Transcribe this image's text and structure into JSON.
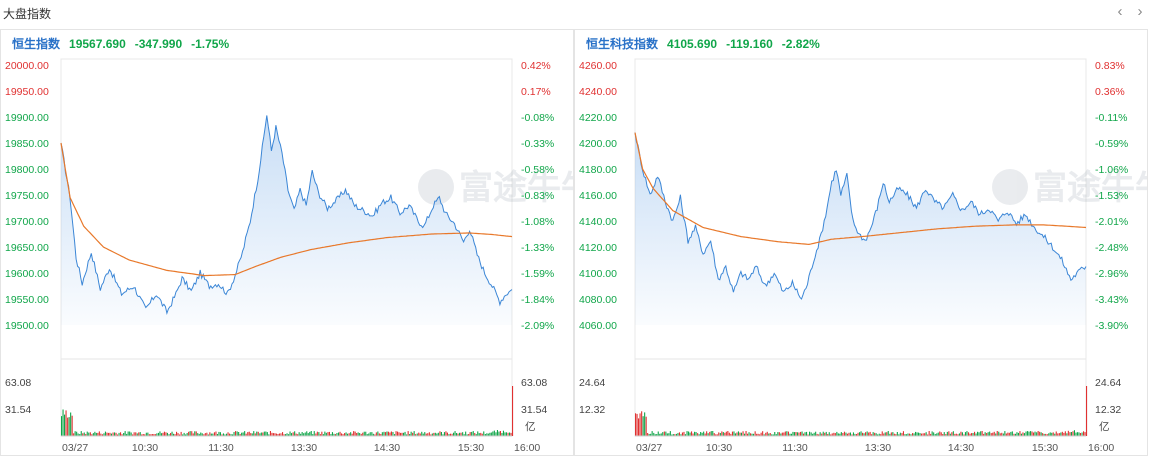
{
  "header": {
    "title": "大盘指数",
    "prev_icon": "chevron-left-icon",
    "next_icon": "chevron-right-icon"
  },
  "watermark": "富途牛牛",
  "colors": {
    "up": "#e03131",
    "down": "#11a64a",
    "price_line": "#3b86d6",
    "avg_line": "#e8782a",
    "name": "#2a72c8"
  },
  "panels": [
    {
      "name": "恒生指数",
      "price": "19567.690",
      "change": "-347.990",
      "change_pct": "-1.75%",
      "price_ticks": [
        {
          "label": "20000.00",
          "dir": "up"
        },
        {
          "label": "19950.00",
          "dir": "up"
        },
        {
          "label": "19900.00",
          "dir": "down"
        },
        {
          "label": "19850.00",
          "dir": "down"
        },
        {
          "label": "19800.00",
          "dir": "down"
        },
        {
          "label": "19750.00",
          "dir": "down"
        },
        {
          "label": "19700.00",
          "dir": "down"
        },
        {
          "label": "19650.00",
          "dir": "down"
        },
        {
          "label": "19600.00",
          "dir": "down"
        },
        {
          "label": "19550.00",
          "dir": "down"
        },
        {
          "label": "19500.00",
          "dir": "down"
        }
      ],
      "pct_ticks": [
        {
          "label": "0.42%",
          "dir": "up"
        },
        {
          "label": "0.17%",
          "dir": "up"
        },
        {
          "label": "-0.08%",
          "dir": "down"
        },
        {
          "label": "-0.33%",
          "dir": "down"
        },
        {
          "label": "-0.58%",
          "dir": "down"
        },
        {
          "label": "-0.83%",
          "dir": "down"
        },
        {
          "label": "-1.08%",
          "dir": "down"
        },
        {
          "label": "-1.33%",
          "dir": "down"
        },
        {
          "label": "-1.59%",
          "dir": "down"
        },
        {
          "label": "-1.84%",
          "dir": "down"
        },
        {
          "label": "-2.09%",
          "dir": "down"
        }
      ],
      "vol_ticks_left": [
        "63.08",
        "31.54"
      ],
      "vol_ticks_right": [
        "63.08",
        "31.54",
        "亿"
      ],
      "time_labels": [
        "03/27",
        "10:30",
        "11:30",
        "13:30",
        "14:30",
        "15:30",
        "16:00"
      ],
      "chart_data": {
        "type": "line",
        "ylim": [
          19500,
          20000
        ],
        "price": [
          [
            0,
            19850
          ],
          [
            6,
            19745
          ],
          [
            10,
            19630
          ],
          [
            14,
            19580
          ],
          [
            20,
            19640
          ],
          [
            26,
            19570
          ],
          [
            32,
            19610
          ],
          [
            40,
            19560
          ],
          [
            48,
            19575
          ],
          [
            56,
            19530
          ],
          [
            63,
            19560
          ],
          [
            70,
            19525
          ],
          [
            76,
            19560
          ],
          [
            80,
            19590
          ],
          [
            86,
            19565
          ],
          [
            92,
            19600
          ],
          [
            98,
            19575
          ],
          [
            104,
            19580
          ],
          [
            110,
            19560
          ],
          [
            115,
            19595
          ],
          [
            120,
            19640
          ],
          [
            125,
            19700
          ],
          [
            130,
            19780
          ],
          [
            133,
            19840
          ],
          [
            136,
            19905
          ],
          [
            139,
            19835
          ],
          [
            142,
            19880
          ],
          [
            146,
            19830
          ],
          [
            150,
            19760
          ],
          [
            154,
            19720
          ],
          [
            158,
            19760
          ],
          [
            162,
            19730
          ],
          [
            166,
            19795
          ],
          [
            170,
            19755
          ],
          [
            176,
            19725
          ],
          [
            182,
            19740
          ],
          [
            188,
            19760
          ],
          [
            194,
            19730
          ],
          [
            200,
            19720
          ],
          [
            206,
            19710
          ],
          [
            212,
            19735
          ],
          [
            218,
            19745
          ],
          [
            224,
            19715
          ],
          [
            230,
            19730
          ],
          [
            236,
            19700
          ],
          [
            240,
            19690
          ],
          [
            246,
            19730
          ],
          [
            250,
            19745
          ],
          [
            254,
            19715
          ],
          [
            260,
            19695
          ],
          [
            266,
            19660
          ],
          [
            270,
            19685
          ],
          [
            275,
            19635
          ],
          [
            280,
            19600
          ],
          [
            285,
            19575
          ],
          [
            290,
            19545
          ],
          [
            294,
            19560
          ],
          [
            298,
            19568
          ]
        ],
        "avg": [
          [
            0,
            19850
          ],
          [
            6,
            19745
          ],
          [
            15,
            19690
          ],
          [
            28,
            19650
          ],
          [
            45,
            19625
          ],
          [
            70,
            19605
          ],
          [
            95,
            19595
          ],
          [
            115,
            19597
          ],
          [
            128,
            19612
          ],
          [
            145,
            19630
          ],
          [
            165,
            19645
          ],
          [
            190,
            19658
          ],
          [
            215,
            19668
          ],
          [
            245,
            19675
          ],
          [
            270,
            19677
          ],
          [
            285,
            19674
          ],
          [
            298,
            19670
          ]
        ],
        "volume_max": 63.08
      }
    },
    {
      "name": "恒生科技指数",
      "price": "4105.690",
      "change": "-119.160",
      "change_pct": "-2.82%",
      "price_ticks": [
        {
          "label": "4260.00",
          "dir": "up"
        },
        {
          "label": "4240.00",
          "dir": "up"
        },
        {
          "label": "4220.00",
          "dir": "down"
        },
        {
          "label": "4200.00",
          "dir": "down"
        },
        {
          "label": "4180.00",
          "dir": "down"
        },
        {
          "label": "4160.00",
          "dir": "down"
        },
        {
          "label": "4140.00",
          "dir": "down"
        },
        {
          "label": "4120.00",
          "dir": "down"
        },
        {
          "label": "4100.00",
          "dir": "down"
        },
        {
          "label": "4080.00",
          "dir": "down"
        },
        {
          "label": "4060.00",
          "dir": "down"
        }
      ],
      "pct_ticks": [
        {
          "label": "0.83%",
          "dir": "up"
        },
        {
          "label": "0.36%",
          "dir": "up"
        },
        {
          "label": "-0.11%",
          "dir": "down"
        },
        {
          "label": "-0.59%",
          "dir": "down"
        },
        {
          "label": "-1.06%",
          "dir": "down"
        },
        {
          "label": "-1.53%",
          "dir": "down"
        },
        {
          "label": "-2.01%",
          "dir": "down"
        },
        {
          "label": "-2.48%",
          "dir": "down"
        },
        {
          "label": "-2.96%",
          "dir": "down"
        },
        {
          "label": "-3.43%",
          "dir": "down"
        },
        {
          "label": "-3.90%",
          "dir": "down"
        }
      ],
      "vol_ticks_left": [
        "24.64",
        "12.32"
      ],
      "vol_ticks_right": [
        "24.64",
        "12.32",
        "亿"
      ],
      "time_labels": [
        "03/27",
        "10:30",
        "11:30",
        "13:30",
        "14:30",
        "15:30",
        "16:00"
      ],
      "chart_data": {
        "type": "line",
        "ylim": [
          4060,
          4260
        ],
        "price": [
          [
            0,
            4208
          ],
          [
            5,
            4180
          ],
          [
            10,
            4160
          ],
          [
            15,
            4175
          ],
          [
            20,
            4155
          ],
          [
            25,
            4140
          ],
          [
            30,
            4158
          ],
          [
            35,
            4125
          ],
          [
            40,
            4135
          ],
          [
            45,
            4115
          ],
          [
            50,
            4125
          ],
          [
            55,
            4095
          ],
          [
            60,
            4105
          ],
          [
            65,
            4085
          ],
          [
            70,
            4100
          ],
          [
            75,
            4095
          ],
          [
            80,
            4105
          ],
          [
            86,
            4090
          ],
          [
            92,
            4100
          ],
          [
            98,
            4085
          ],
          [
            104,
            4092
          ],
          [
            110,
            4080
          ],
          [
            114,
            4092
          ],
          [
            118,
            4110
          ],
          [
            122,
            4125
          ],
          [
            126,
            4145
          ],
          [
            130,
            4170
          ],
          [
            133,
            4180
          ],
          [
            136,
            4160
          ],
          [
            140,
            4175
          ],
          [
            144,
            4140
          ],
          [
            148,
            4130
          ],
          [
            152,
            4125
          ],
          [
            156,
            4135
          ],
          [
            160,
            4150
          ],
          [
            164,
            4170
          ],
          [
            168,
            4155
          ],
          [
            174,
            4165
          ],
          [
            180,
            4160
          ],
          [
            186,
            4150
          ],
          [
            192,
            4165
          ],
          [
            198,
            4155
          ],
          [
            204,
            4150
          ],
          [
            210,
            4160
          ],
          [
            216,
            4148
          ],
          [
            222,
            4155
          ],
          [
            228,
            4145
          ],
          [
            234,
            4150
          ],
          [
            240,
            4140
          ],
          [
            246,
            4148
          ],
          [
            252,
            4138
          ],
          [
            258,
            4145
          ],
          [
            264,
            4135
          ],
          [
            270,
            4128
          ],
          [
            276,
            4120
          ],
          [
            282,
            4110
          ],
          [
            288,
            4095
          ],
          [
            294,
            4102
          ],
          [
            298,
            4105
          ]
        ],
        "avg": [
          [
            0,
            4208
          ],
          [
            5,
            4180
          ],
          [
            12,
            4165
          ],
          [
            25,
            4148
          ],
          [
            45,
            4135
          ],
          [
            70,
            4128
          ],
          [
            95,
            4124
          ],
          [
            115,
            4122
          ],
          [
            130,
            4126
          ],
          [
            150,
            4128
          ],
          [
            175,
            4131
          ],
          [
            200,
            4134
          ],
          [
            225,
            4136
          ],
          [
            250,
            4137
          ],
          [
            270,
            4137
          ],
          [
            285,
            4136
          ],
          [
            298,
            4135
          ]
        ],
        "volume_max": 24.64
      }
    }
  ]
}
